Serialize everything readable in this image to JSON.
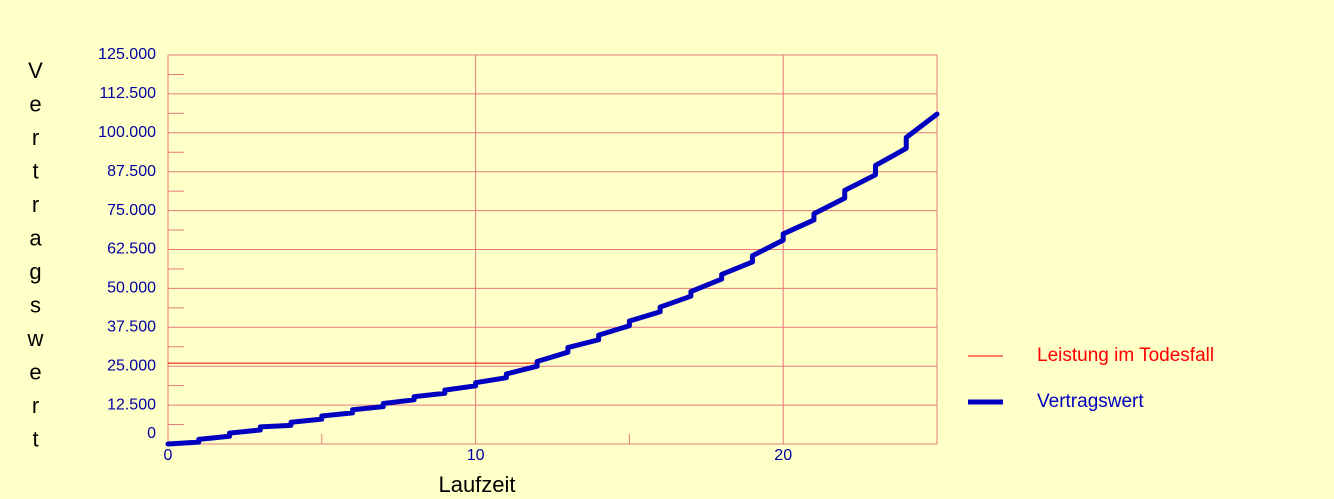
{
  "chart_data": {
    "type": "line",
    "x_label": "Laufzeit",
    "y_label": "Vertragswert",
    "xlim": [
      0,
      25
    ],
    "xticks": [
      0,
      10,
      20
    ],
    "xminorticks": [
      5,
      15,
      25
    ],
    "ylim": [
      0,
      125000
    ],
    "yticks": [
      {
        "value": 0,
        "label": "0"
      },
      {
        "value": 12500,
        "label": "12.500"
      },
      {
        "value": 25000,
        "label": "25.000"
      },
      {
        "value": 37500,
        "label": "37.500"
      },
      {
        "value": 50000,
        "label": "50.000"
      },
      {
        "value": 62500,
        "label": "62.500"
      },
      {
        "value": 75000,
        "label": "75.000"
      },
      {
        "value": 87500,
        "label": "87.500"
      },
      {
        "value": 100000,
        "label": "100.000"
      },
      {
        "value": 112500,
        "label": "112.500"
      },
      {
        "value": 125000,
        "label": "125.000"
      }
    ],
    "yminorticks": [
      6250,
      18750,
      31250,
      43750,
      56250,
      68750,
      81250,
      93750,
      106250,
      118750
    ],
    "grid": true,
    "legend": "right",
    "series": [
      {
        "name": "Leistung im Todesfall",
        "color": "#ff0000",
        "x": [
          0,
          12
        ],
        "values": [
          26000,
          26000
        ]
      },
      {
        "name": "Vertragswert",
        "color": "#0000c0",
        "x": [
          0,
          1,
          1,
          2,
          2,
          3,
          3,
          4,
          4,
          5,
          5,
          6,
          6,
          7,
          7,
          8,
          8,
          9,
          9,
          10,
          10,
          11,
          11,
          12,
          12,
          13,
          13,
          14,
          14,
          15,
          15,
          16,
          16,
          17,
          17,
          18,
          18,
          19,
          19,
          20,
          20,
          21,
          21,
          22,
          22,
          23,
          23,
          24,
          24,
          25
        ],
        "values": [
          0,
          600,
          1500,
          2500,
          3500,
          4500,
          5500,
          6000,
          7000,
          8000,
          9000,
          10000,
          11000,
          12000,
          13000,
          14200,
          15200,
          16300,
          17300,
          18700,
          19700,
          21300,
          22500,
          25000,
          26500,
          29500,
          31000,
          33500,
          35000,
          38000,
          39500,
          42500,
          44000,
          47500,
          49000,
          53000,
          54500,
          58500,
          60500,
          65500,
          67500,
          72000,
          74000,
          79000,
          81500,
          86500,
          89500,
          95000,
          98500,
          106000
        ]
      }
    ]
  }
}
